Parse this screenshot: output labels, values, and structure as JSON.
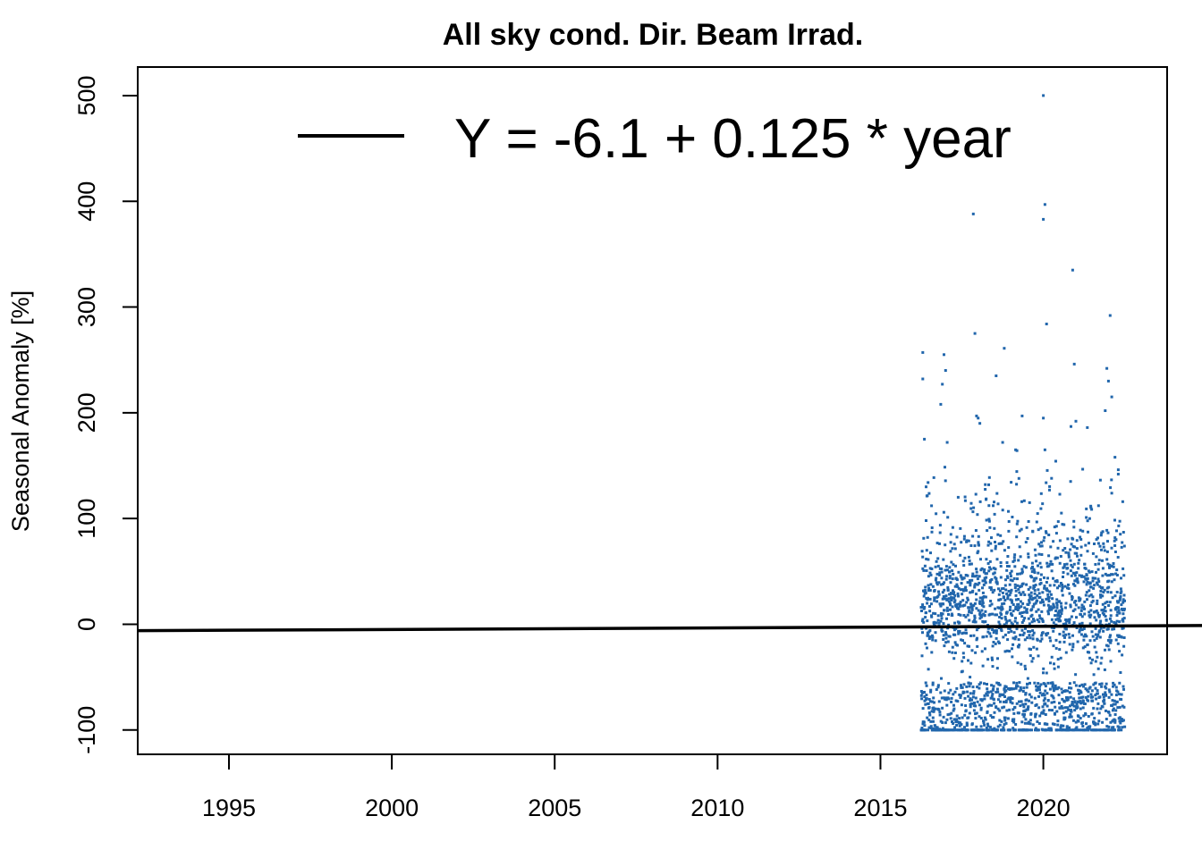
{
  "chart_data": {
    "type": "scatter",
    "title": "All sky cond. Dir. Beam Irrad.",
    "xlabel": "",
    "ylabel": "Seasonal Anomaly [%]",
    "xlim": [
      1992.2,
      2023.8
    ],
    "ylim": [
      -123,
      527
    ],
    "x_ticks": [
      1995,
      2000,
      2005,
      2010,
      2015,
      2020
    ],
    "y_ticks": [
      -100,
      0,
      100,
      200,
      300,
      400,
      500
    ],
    "grid": false,
    "point_color": "#2166ac",
    "line_color": "#000000",
    "legend": {
      "position": "top",
      "label": "Y = -6.1 + 0.125 * year"
    },
    "trend_line": {
      "intercept": -6.1,
      "slope": 0.125,
      "x_origin": 1992
    },
    "data_range": {
      "x": [
        2016.25,
        2022.5
      ],
      "y": [
        -100,
        500
      ]
    },
    "series": [
      {
        "points": [
          [
            2016.3,
            257
          ],
          [
            2016.3,
            232
          ],
          [
            2016.35,
            175
          ],
          [
            2016.4,
            130
          ],
          [
            2016.4,
            98
          ],
          [
            2016.95,
            255
          ],
          [
            2016.9,
            227
          ],
          [
            2017.0,
            240
          ],
          [
            2016.85,
            208
          ],
          [
            2017.05,
            172
          ],
          [
            2017.85,
            388
          ],
          [
            2017.9,
            275
          ],
          [
            2017.95,
            197
          ],
          [
            2018.0,
            195
          ],
          [
            2018.05,
            190
          ],
          [
            2018.55,
            235
          ],
          [
            2018.8,
            261
          ],
          [
            2018.75,
            172
          ],
          [
            2019.35,
            197
          ],
          [
            2019.15,
            165
          ],
          [
            2020.0,
            500
          ],
          [
            2020.05,
            397
          ],
          [
            2020.0,
            383
          ],
          [
            2020.1,
            284
          ],
          [
            2020.0,
            195
          ],
          [
            2020.05,
            165
          ],
          [
            2020.9,
            335
          ],
          [
            2020.95,
            246
          ],
          [
            2021.0,
            192
          ],
          [
            2020.85,
            187
          ],
          [
            2021.35,
            186
          ],
          [
            2022.05,
            292
          ],
          [
            2021.95,
            242
          ],
          [
            2022.0,
            230
          ],
          [
            2022.1,
            215
          ],
          [
            2021.9,
            202
          ],
          [
            2022.2,
            158
          ],
          [
            2022.3,
            142
          ]
        ]
      }
    ]
  }
}
